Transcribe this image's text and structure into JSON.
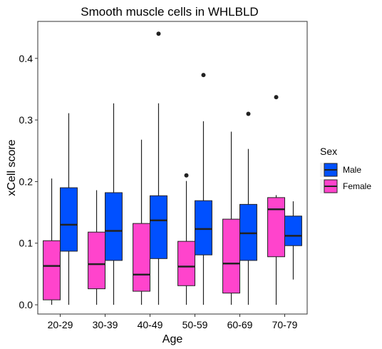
{
  "chart_data": {
    "type": "boxplot",
    "title": "Smooth muscle cells in WHLBLD",
    "xlabel": "Age",
    "ylabel": "xCell score",
    "ylim": [
      -0.015,
      0.46
    ],
    "yticks": [
      0.0,
      0.1,
      0.2,
      0.3,
      0.4
    ],
    "ytick_labels": [
      "0.0",
      "0.1",
      "0.2",
      "0.3",
      "0.4"
    ],
    "categories": [
      "20-29",
      "30-39",
      "40-49",
      "50-59",
      "60-69",
      "70-79"
    ],
    "grid": false,
    "legend": {
      "title": "Sex",
      "placement": "right"
    },
    "series": [
      {
        "name": "Female",
        "color": "#FF44CC",
        "boxes": [
          {
            "min": 0.0,
            "q1": 0.008,
            "median": 0.063,
            "q3": 0.104,
            "max": 0.205,
            "outliers": []
          },
          {
            "min": 0.0,
            "q1": 0.026,
            "median": 0.066,
            "q3": 0.118,
            "max": 0.186,
            "outliers": []
          },
          {
            "min": 0.0,
            "q1": 0.022,
            "median": 0.049,
            "q3": 0.132,
            "max": 0.268,
            "outliers": []
          },
          {
            "min": 0.0,
            "q1": 0.031,
            "median": 0.062,
            "q3": 0.103,
            "max": 0.201,
            "outliers": [
              0.21
            ]
          },
          {
            "min": 0.0,
            "q1": 0.019,
            "median": 0.067,
            "q3": 0.139,
            "max": 0.281,
            "outliers": []
          },
          {
            "min": 0.0,
            "q1": 0.078,
            "median": 0.155,
            "q3": 0.174,
            "max": 0.178,
            "outliers": [
              0.337
            ]
          }
        ]
      },
      {
        "name": "Male",
        "color": "#0050FF",
        "boxes": [
          {
            "min": 0.0,
            "q1": 0.087,
            "median": 0.13,
            "q3": 0.19,
            "max": 0.311,
            "outliers": []
          },
          {
            "min": 0.0,
            "q1": 0.072,
            "median": 0.12,
            "q3": 0.182,
            "max": 0.327,
            "outliers": []
          },
          {
            "min": 0.0,
            "q1": 0.075,
            "median": 0.137,
            "q3": 0.177,
            "max": 0.327,
            "outliers": [
              0.44
            ]
          },
          {
            "min": 0.0,
            "q1": 0.081,
            "median": 0.123,
            "q3": 0.169,
            "max": 0.298,
            "outliers": [
              0.373
            ]
          },
          {
            "min": 0.0,
            "q1": 0.072,
            "median": 0.116,
            "q3": 0.163,
            "max": 0.253,
            "outliers": [
              0.31
            ]
          },
          {
            "min": 0.041,
            "q1": 0.096,
            "median": 0.112,
            "q3": 0.144,
            "max": 0.168,
            "outliers": []
          }
        ]
      }
    ]
  }
}
